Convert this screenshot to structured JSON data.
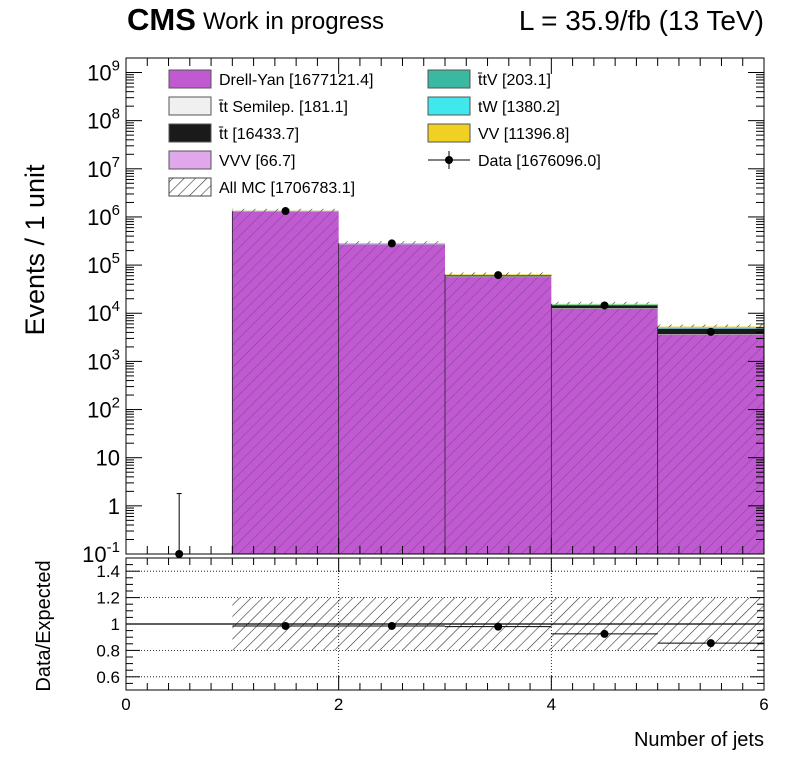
{
  "header": {
    "experiment": "CMS",
    "status": "Work in progress",
    "lumi": "L = 35.9/fb (13 TeV)"
  },
  "chart_data": [
    {
      "type": "bar",
      "ylabel": "Events / 1 unit",
      "yscale": "log",
      "ylim": [
        0.1,
        2000000000
      ],
      "xlim": [
        0,
        6
      ],
      "bin_edges": [
        0,
        1,
        2,
        3,
        4,
        5,
        6
      ],
      "y_tick_labels": [
        "10^-1",
        "1",
        "10",
        "10^2",
        "10^3",
        "10^4",
        "10^5",
        "10^6",
        "10^7",
        "10^8",
        "10^9"
      ],
      "stacked": true,
      "series": [
        {
          "name": "Drell-Yan [1677121.4]",
          "color": "#c05ad0",
          "values": [
            0,
            1330000,
            276000,
            58000,
            12600,
            3650
          ]
        },
        {
          "name": "t̄t Semilep. [181.1]",
          "color": "#f0f0f0",
          "values": [
            0,
            90,
            55,
            25,
            8,
            3
          ]
        },
        {
          "name": "t̄t [16433.7]",
          "color": "#1a1a1a",
          "values": [
            0,
            3000,
            5200,
            4600,
            2400,
            1200
          ]
        },
        {
          "name": "VVV [66.7]",
          "color": "#e0a8ea",
          "values": [
            0,
            10,
            15,
            15,
            12,
            14
          ]
        },
        {
          "name": "t̄tV [203.1]",
          "color": "#3ab8a0",
          "values": [
            0,
            10,
            25,
            45,
            55,
            68
          ]
        },
        {
          "name": "tW [1380.2]",
          "color": "#40e8ee",
          "values": [
            0,
            300,
            450,
            330,
            190,
            110
          ]
        },
        {
          "name": "VV [11396.8]",
          "color": "#f0d020",
          "values": [
            0,
            6500,
            3000,
            1200,
            450,
            247
          ]
        }
      ],
      "mc_total": {
        "name": "All MC [1706783.1]",
        "values": [
          0,
          1340000,
          285000,
          64000,
          15700,
          5300
        ]
      },
      "data": {
        "name": "Data [1676096.0]",
        "x": [
          0.5,
          1.5,
          2.5,
          3.5,
          4.5,
          5.5
        ],
        "values": [
          0,
          1325000,
          282000,
          62000,
          14500,
          4100
        ],
        "err_up": [
          1.8,
          1151,
          531,
          249,
          120,
          64
        ]
      },
      "legend_position": "top"
    },
    {
      "type": "scatter",
      "ylabel": "Data/Expected",
      "xlabel": "Number of jets",
      "xlim": [
        0,
        6
      ],
      "ylim": [
        0.5,
        1.5
      ],
      "x_ticks": [
        0,
        2,
        4,
        6
      ],
      "y_ticks": [
        0.6,
        0.8,
        1,
        1.2,
        1.4
      ],
      "grid": true,
      "reference_line": 1,
      "x": [
        1.5,
        2.5,
        3.5,
        4.5,
        5.5
      ],
      "values": [
        0.985,
        0.985,
        0.98,
        0.925,
        0.855
      ],
      "mc_uncertainty": {
        "lower": [
          0.8,
          0.8,
          0.8,
          0.8,
          0.8
        ],
        "upper": [
          1.2,
          1.2,
          1.2,
          1.2,
          1.2
        ]
      }
    }
  ]
}
